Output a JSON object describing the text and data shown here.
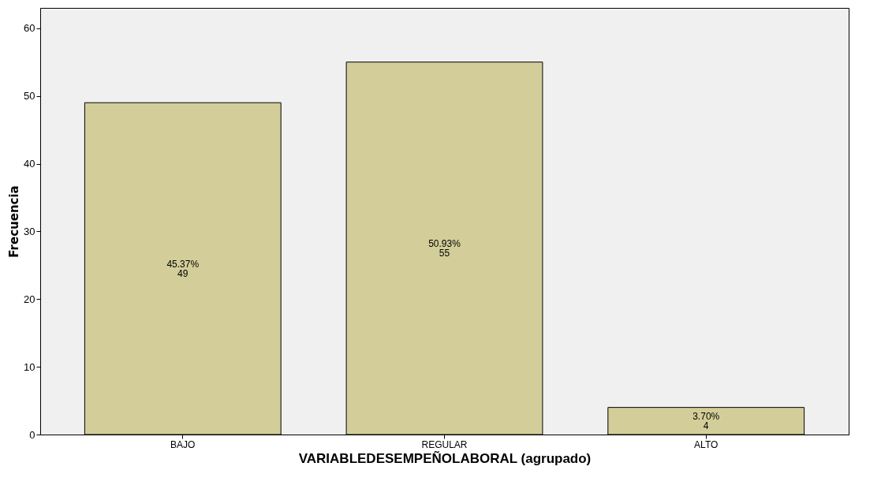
{
  "chart_data": {
    "type": "bar",
    "xlabel": "VARIABLEDESEMPEÑOLABORAL (agrupado)",
    "ylabel": "Frecuencia",
    "categories": [
      "BAJO",
      "REGULAR",
      "ALTO"
    ],
    "values": [
      49,
      55,
      4
    ],
    "value_labels": [
      "45.37%\n49",
      "50.93%\n55",
      "3.70%\n4"
    ],
    "color": "#d3ce99",
    "ylim": [
      0,
      63
    ],
    "yticks": [
      0,
      10,
      20,
      30,
      40,
      50,
      60
    ],
    "grid": false
  }
}
